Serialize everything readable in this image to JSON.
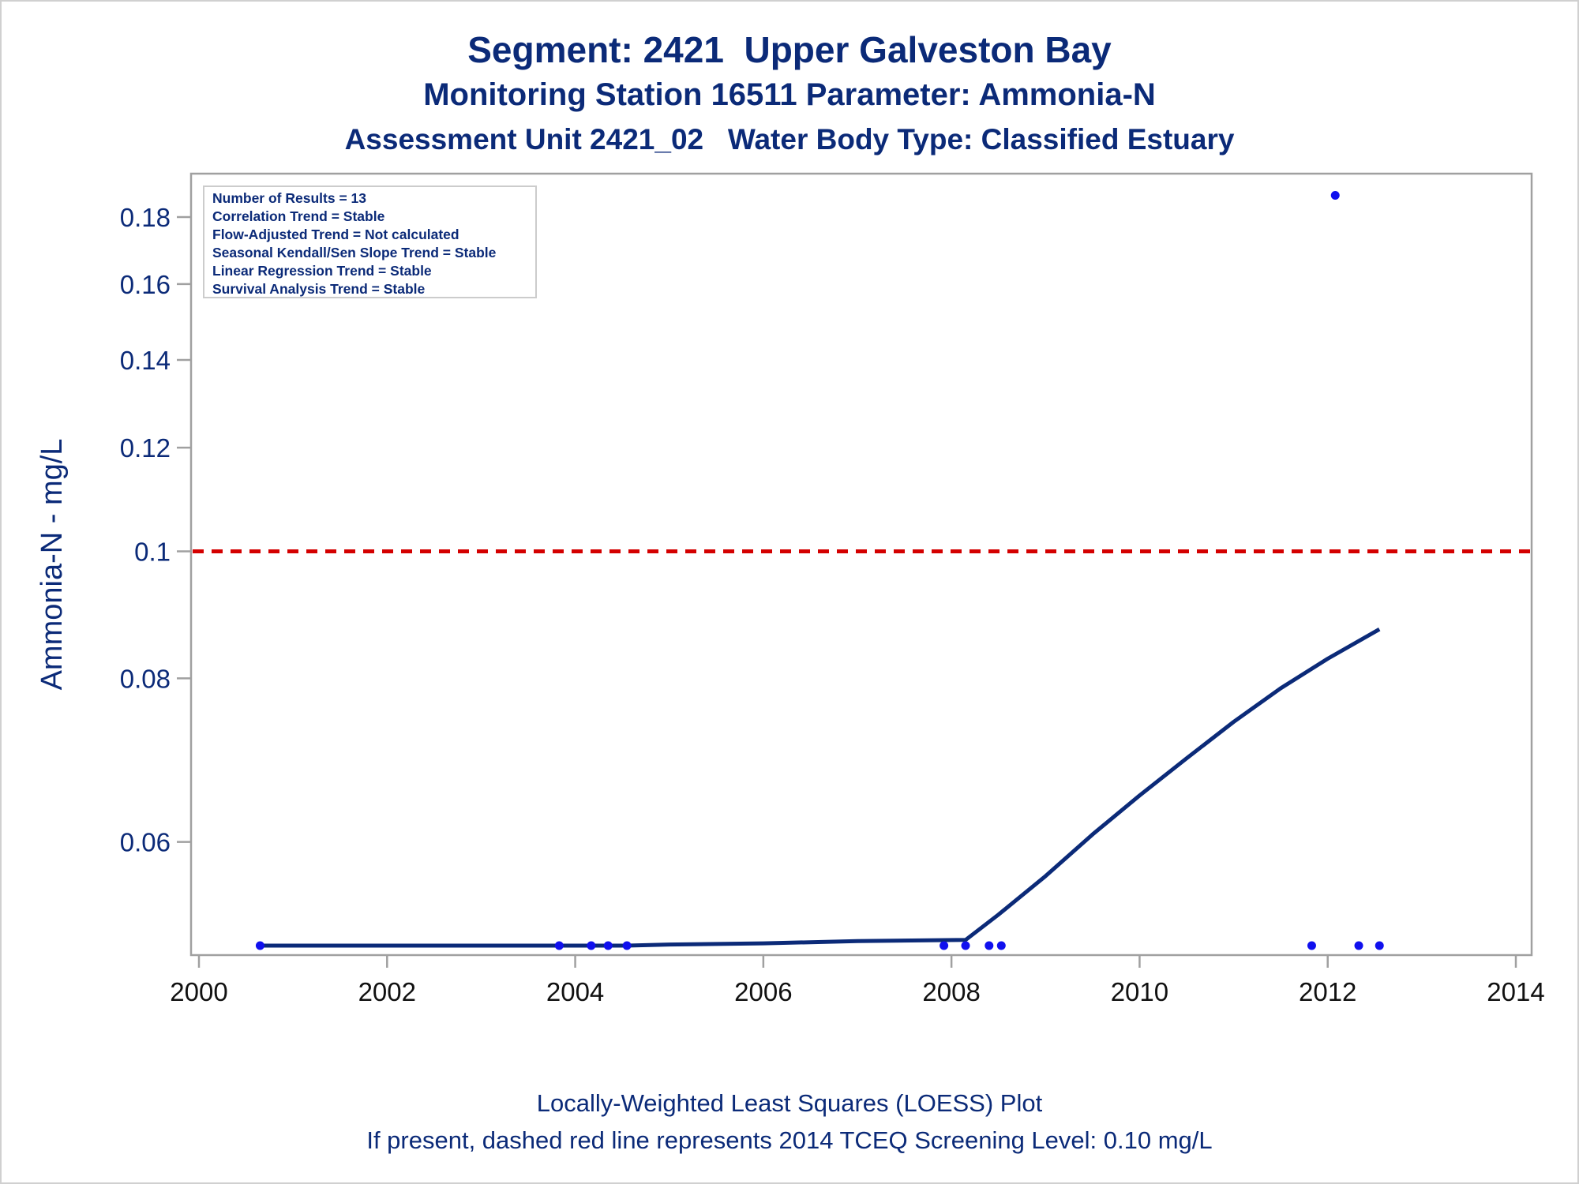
{
  "chart_data": {
    "type": "scatter",
    "title": "Segment: 2421  Upper Galveston Bay",
    "subtitle": "Monitoring Station 16511 Parameter: Ammonia-N",
    "subtitle2": "Assessment Unit 2421_02   Water Body Type: Classified Estuary",
    "xlabel": "",
    "ylabel": "Ammonia-N - mg/L",
    "footnote1": "Locally-Weighted Least Squares (LOESS) Plot",
    "footnote2": "If present, dashed red line represents 2014 TCEQ Screening Level: 0.10 mg/L",
    "x_ticks": [
      "2000",
      "2002",
      "2004",
      "2006",
      "2008",
      "2010",
      "2012",
      "2014"
    ],
    "y_ticks": [
      "0.06",
      "0.08",
      "0.1",
      "0.12",
      "0.14",
      "0.16",
      "0.18"
    ],
    "y_tick_values": [
      0.06,
      0.08,
      0.1,
      0.12,
      0.14,
      0.16,
      0.18
    ],
    "xlim": [
      2000,
      2014
    ],
    "ylim": [
      0.05,
      0.19
    ],
    "y_scale": "log",
    "grid": false,
    "points": [
      {
        "x": 2000.65,
        "y": 0.05
      },
      {
        "x": 2003.83,
        "y": 0.05
      },
      {
        "x": 2004.17,
        "y": 0.05
      },
      {
        "x": 2004.35,
        "y": 0.05
      },
      {
        "x": 2004.55,
        "y": 0.05
      },
      {
        "x": 2007.92,
        "y": 0.05
      },
      {
        "x": 2008.15,
        "y": 0.05
      },
      {
        "x": 2008.4,
        "y": 0.05
      },
      {
        "x": 2008.53,
        "y": 0.05
      },
      {
        "x": 2011.83,
        "y": 0.05
      },
      {
        "x": 2012.08,
        "y": 0.187
      },
      {
        "x": 2012.33,
        "y": 0.05
      },
      {
        "x": 2012.55,
        "y": 0.05
      }
    ],
    "loess": [
      {
        "x": 2000.65,
        "y": 0.05
      },
      {
        "x": 2003.83,
        "y": 0.05
      },
      {
        "x": 2004.55,
        "y": 0.05
      },
      {
        "x": 2005.0,
        "y": 0.0501
      },
      {
        "x": 2006.0,
        "y": 0.0502
      },
      {
        "x": 2007.0,
        "y": 0.0504
      },
      {
        "x": 2008.15,
        "y": 0.0505
      },
      {
        "x": 2008.5,
        "y": 0.0528
      },
      {
        "x": 2009.0,
        "y": 0.0565
      },
      {
        "x": 2009.5,
        "y": 0.0608
      },
      {
        "x": 2010.0,
        "y": 0.0651
      },
      {
        "x": 2010.5,
        "y": 0.0695
      },
      {
        "x": 2011.0,
        "y": 0.0741
      },
      {
        "x": 2011.5,
        "y": 0.0786
      },
      {
        "x": 2012.0,
        "y": 0.0828
      },
      {
        "x": 2012.55,
        "y": 0.0872
      }
    ],
    "screening_level": {
      "y": 0.1,
      "color": "#d40000",
      "style": "dashed"
    },
    "stats_box": [
      "Number of Results = 13",
      "Correlation Trend = Stable",
      "Flow-Adjusted Trend = Not calculated",
      "Seasonal Kendall/Sen Slope Trend = Stable",
      "Linear Regression Trend = Stable",
      "Survival Analysis Trend = Stable"
    ],
    "colors": {
      "text": "#0b2a78",
      "points": "#1010ee",
      "loess": "#0b2a78",
      "frame": "#a0a0a0"
    }
  }
}
